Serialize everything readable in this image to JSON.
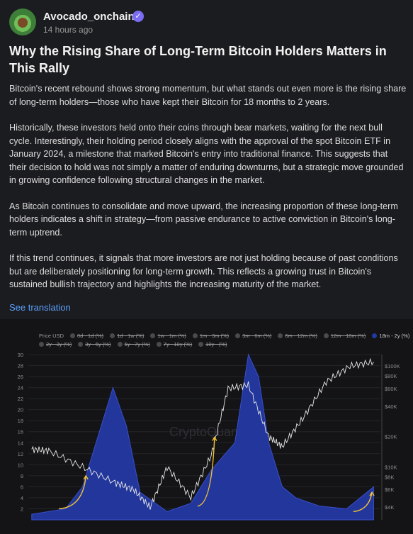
{
  "post": {
    "author": "Avocado_onchain",
    "timestamp": "14 hours ago",
    "title": "Why the Rising Share of Long-Term Bitcoin Holders Matters in This Rally",
    "paragraphs": [
      "Bitcoin's recent rebound shows strong momentum, but what stands out even more is the rising share of long-term holders—those who have kept their Bitcoin for 18 months to 2 years.",
      "Historically, these investors held onto their coins through bear markets, waiting for the next bull cycle. Interestingly, their holding period closely aligns with the approval of the spot Bitcoin ETF in January 2024, a milestone that marked Bitcoin's entry into traditional finance. This suggests that their decision to hold was not simply a matter of enduring downturns, but a strategic move grounded in growing confidence following structural changes in the market.",
      "As Bitcoin continues to consolidate and move upward, the increasing proportion of these long-term holders indicates a shift in strategy—from passive endurance to active conviction in Bitcoin's long-term uptrend.",
      "If this trend continues, it signals that more investors are not just holding because of past conditions but are deliberately positioning for long-term growth. This reflects a growing trust in Bitcoin's sustained bullish trajectory and highlights the increasing maturity of the market."
    ],
    "translate_link": "See translation",
    "icons": {
      "verified": "verified-badge-icon",
      "avatar": "avocado-avatar"
    }
  },
  "chart_data": {
    "type": "area",
    "watermark": "CryptoQuant",
    "legend_row1": [
      "Price USD",
      "0d - 1d (%)",
      "1d - 1w (%)",
      "1w - 1m (%)",
      "1m - 3m (%)",
      "3m - 6m (%)",
      "6m - 12m (%)",
      "12m - 18m (%)",
      "18m - 2y (%)"
    ],
    "legend_row2": [
      "2y - 3y (%)",
      "3y - 5y (%)",
      "5y - 7y (%)",
      "7y - 10y (%)",
      "10y~ (%)"
    ],
    "active_series": "18m - 2y (%)",
    "y_left_ticks": [
      "30",
      "28",
      "26",
      "24",
      "22",
      "20",
      "18",
      "16",
      "14",
      "12",
      "10",
      "8",
      "6",
      "4",
      "2"
    ],
    "y_right_ticks": [
      "$100K",
      "$80K",
      "$60K",
      "$40K",
      "$20K",
      "$10K",
      "$8K",
      "$6K",
      "$4K"
    ],
    "series": [
      {
        "name": "18m - 2y (%)",
        "x": [
          2015.5,
          2016.5,
          2017.0,
          2017.5,
          2017.9,
          2018.3,
          2018.7,
          2019.5,
          2020.2,
          2020.8,
          2021.5,
          2021.9,
          2022.2,
          2022.5,
          2022.9,
          2023.3,
          2024.0,
          2024.8,
          2025.6
        ],
        "values": [
          1,
          2,
          6,
          16,
          24,
          17,
          5,
          1.5,
          3,
          9,
          14,
          30,
          26,
          14,
          6,
          4,
          2.5,
          2,
          6
        ]
      },
      {
        "name": "Price USD",
        "x": [
          2015.5,
          2016.0,
          2017.0,
          2017.96,
          2018.5,
          2019.0,
          2019.5,
          2020.2,
          2020.8,
          2021.3,
          2021.9,
          2022.5,
          2022.9,
          2023.5,
          2024.2,
          2024.9,
          2025.6
        ],
        "values": [
          15,
          14.5,
          10,
          7,
          6,
          4,
          10,
          5,
          13,
          60,
          65,
          20,
          16,
          30,
          70,
          100,
          110
        ]
      }
    ],
    "colors": {
      "area": "#2338a3",
      "area_edge": "#3a53d6",
      "price": "#e8e8e8",
      "arrow": "#f2c232",
      "bg": "#141416"
    }
  }
}
